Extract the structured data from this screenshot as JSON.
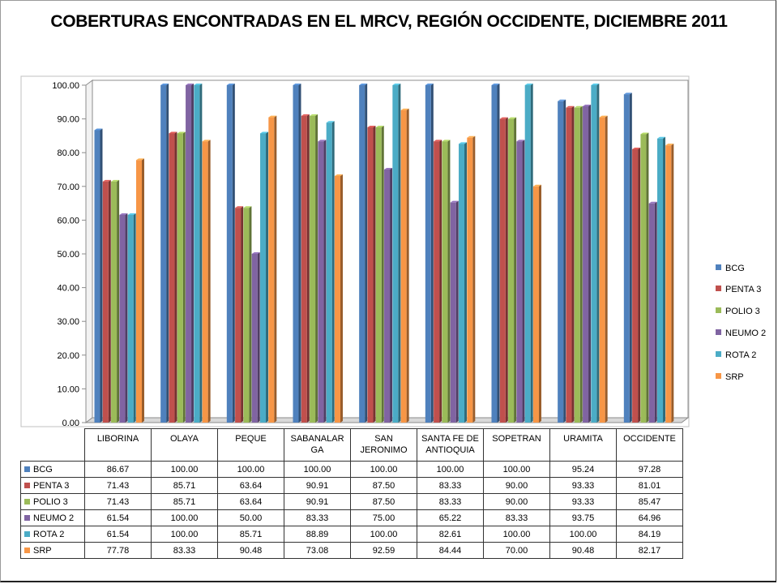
{
  "chart_data": {
    "type": "bar",
    "title": "COBERTURAS ENCONTRADAS EN EL MRCV, REGIÓN OCCIDENTE, DICIEMBRE 2011",
    "categories": [
      "LIBORINA",
      "OLAYA",
      "PEQUE",
      "SABANALAR GA",
      "SAN JERONIMO",
      "SANTA FE DE ANTIOQUIA",
      "SOPETRAN",
      "URAMITA",
      "OCCIDENTE"
    ],
    "ylim": [
      0,
      100
    ],
    "yticks": [
      "0.00",
      "10.00",
      "20.00",
      "30.00",
      "40.00",
      "50.00",
      "60.00",
      "70.00",
      "80.00",
      "90.00",
      "100.00"
    ],
    "legend_position": "right",
    "grid": false,
    "series": [
      {
        "name": "BCG",
        "color": "#4F81BD",
        "values": [
          86.67,
          100.0,
          100.0,
          100.0,
          100.0,
          100.0,
          100.0,
          95.24,
          97.28
        ],
        "labels": [
          "86.67",
          "100.00",
          "100.00",
          "100.00",
          "100.00",
          "100.00",
          "100.00",
          "95.24",
          "97.28"
        ]
      },
      {
        "name": "PENTA 3",
        "color": "#C0504D",
        "values": [
          71.43,
          85.71,
          63.64,
          90.91,
          87.5,
          83.33,
          90.0,
          93.33,
          81.01
        ],
        "labels": [
          "71.43",
          "85.71",
          "63.64",
          "90.91",
          "87.50",
          "83.33",
          "90.00",
          "93.33",
          "81.01"
        ]
      },
      {
        "name": "POLIO 3",
        "color": "#9BBB59",
        "values": [
          71.43,
          85.71,
          63.64,
          90.91,
          87.5,
          83.33,
          90.0,
          93.33,
          85.47
        ],
        "labels": [
          "71.43",
          "85.71",
          "63.64",
          "90.91",
          "87.50",
          "83.33",
          "90.00",
          "93.33",
          "85.47"
        ]
      },
      {
        "name": "NEUMO 2",
        "color": "#8064A2",
        "values": [
          61.54,
          100.0,
          50.0,
          83.33,
          75.0,
          65.22,
          83.33,
          93.75,
          64.96
        ],
        "labels": [
          "61.54",
          "100.00",
          "50.00",
          "83.33",
          "75.00",
          "65.22",
          "83.33",
          "93.75",
          "64.96"
        ]
      },
      {
        "name": "ROTA 2",
        "color": "#4BACC6",
        "values": [
          61.54,
          100.0,
          85.71,
          88.89,
          100.0,
          82.61,
          100.0,
          100.0,
          84.19
        ],
        "labels": [
          "61.54",
          "100.00",
          "85.71",
          "88.89",
          "100.00",
          "82.61",
          "100.00",
          "100.00",
          "84.19"
        ]
      },
      {
        "name": "SRP",
        "color": "#F79646",
        "values": [
          77.78,
          83.33,
          90.48,
          73.08,
          92.59,
          84.44,
          70.0,
          90.48,
          82.17
        ],
        "labels": [
          "77.78",
          "83.33",
          "90.48",
          "73.08",
          "92.59",
          "84.44",
          "70.00",
          "90.48",
          "82.17"
        ]
      }
    ]
  }
}
